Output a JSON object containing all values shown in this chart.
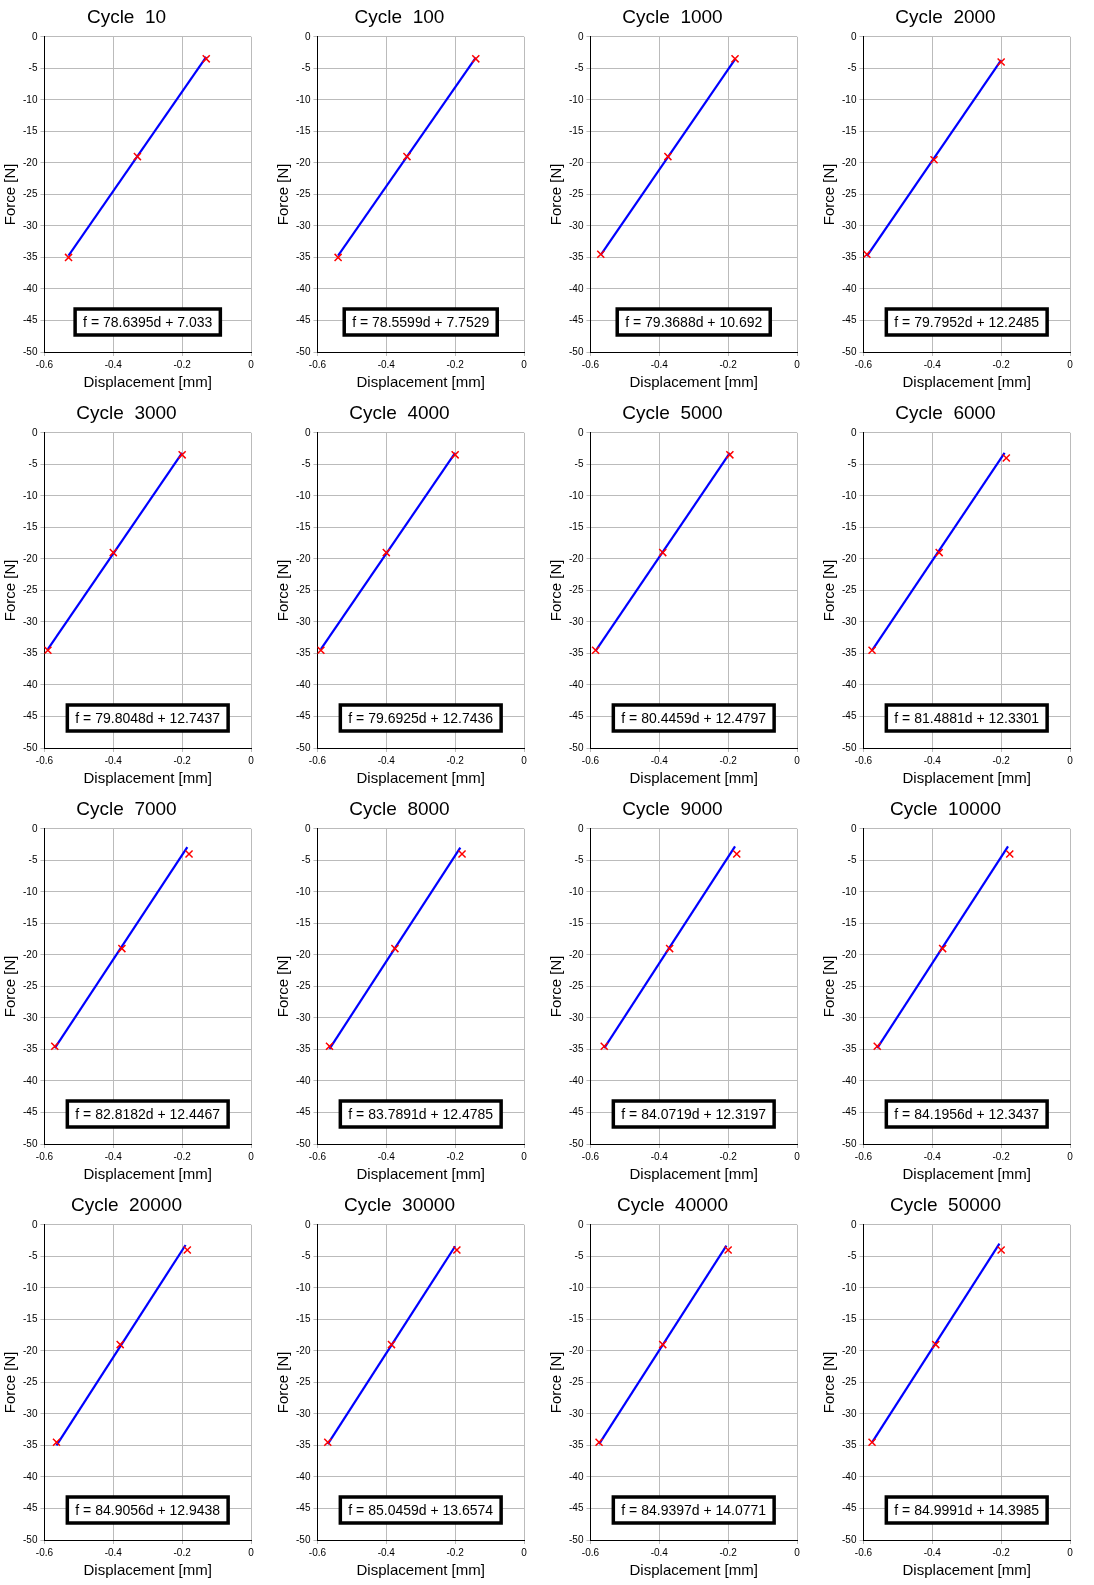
{
  "chart_data": [
    {
      "type": "scatter",
      "title": "Cycle  10",
      "xlabel": "Displacement [mm]",
      "ylabel": "Force [N]",
      "xlim": [
        -0.6,
        0
      ],
      "ylim": [
        -50,
        0
      ],
      "xticks": [
        -0.6,
        -0.4,
        -0.2,
        0
      ],
      "yticks": [
        -50,
        -45,
        -40,
        -35,
        -30,
        -25,
        -20,
        -15,
        -10,
        -5,
        0
      ],
      "grid": true,
      "legend": false,
      "annotations": [
        "f = 78.6395d + 7.033"
      ],
      "series": [
        {
          "type": "scatter",
          "color": "#ff0000",
          "marker": "cross",
          "x": [
            -0.53,
            -0.33,
            -0.13
          ],
          "values": [
            -35,
            -19,
            -3.5
          ]
        },
        {
          "type": "line",
          "color": "#0000ff",
          "marker": "none",
          "line_style": "solid",
          "x": [
            -0.53,
            -0.13
          ],
          "values": [
            -34.7,
            -3.2
          ]
        }
      ]
    },
    {
      "type": "scatter",
      "title": "Cycle  100",
      "xlabel": "Displacement [mm]",
      "ylabel": "Force [N]",
      "xlim": [
        -0.6,
        0
      ],
      "ylim": [
        -50,
        0
      ],
      "xticks": [
        -0.6,
        -0.4,
        -0.2,
        0
      ],
      "yticks": [
        -50,
        -45,
        -40,
        -35,
        -30,
        -25,
        -20,
        -15,
        -10,
        -5,
        0
      ],
      "grid": true,
      "legend": false,
      "annotations": [
        "f = 78.5599d + 7.7529"
      ],
      "series": [
        {
          "type": "scatter",
          "color": "#ff0000",
          "marker": "cross",
          "x": [
            -0.54,
            -0.34,
            -0.14
          ],
          "values": [
            -35,
            -19,
            -3.5
          ]
        },
        {
          "type": "line",
          "color": "#0000ff",
          "marker": "none",
          "line_style": "solid",
          "x": [
            -0.54,
            -0.14
          ],
          "values": [
            -34.7,
            -3.3
          ]
        }
      ]
    },
    {
      "type": "scatter",
      "title": "Cycle  1000",
      "xlabel": "Displacement [mm]",
      "ylabel": "Force [N]",
      "xlim": [
        -0.6,
        0
      ],
      "ylim": [
        -50,
        0
      ],
      "xticks": [
        -0.6,
        -0.4,
        -0.2,
        0
      ],
      "yticks": [
        -50,
        -45,
        -40,
        -35,
        -30,
        -25,
        -20,
        -15,
        -10,
        -5,
        0
      ],
      "grid": true,
      "legend": false,
      "annotations": [
        "f = 79.3688d + 10.692"
      ],
      "series": [
        {
          "type": "scatter",
          "color": "#ff0000",
          "marker": "cross",
          "x": [
            -0.57,
            -0.375,
            -0.18
          ],
          "values": [
            -34.5,
            -19,
            -3.5
          ]
        },
        {
          "type": "line",
          "color": "#0000ff",
          "marker": "none",
          "line_style": "solid",
          "x": [
            -0.57,
            -0.18
          ],
          "values": [
            -34.6,
            -3.6
          ]
        }
      ]
    },
    {
      "type": "scatter",
      "title": "Cycle  2000",
      "xlabel": "Displacement [mm]",
      "ylabel": "Force [N]",
      "xlim": [
        -0.6,
        0
      ],
      "ylim": [
        -50,
        0
      ],
      "xticks": [
        -0.6,
        -0.4,
        -0.2,
        0
      ],
      "yticks": [
        -50,
        -45,
        -40,
        -35,
        -30,
        -25,
        -20,
        -15,
        -10,
        -5,
        0
      ],
      "grid": true,
      "legend": false,
      "annotations": [
        "f = 79.7952d + 12.2485"
      ],
      "series": [
        {
          "type": "scatter",
          "color": "#ff0000",
          "marker": "cross",
          "x": [
            -0.59,
            -0.395,
            -0.2
          ],
          "values": [
            -34.5,
            -19.5,
            -4
          ]
        },
        {
          "type": "line",
          "color": "#0000ff",
          "marker": "none",
          "line_style": "solid",
          "x": [
            -0.59,
            -0.2
          ],
          "values": [
            -34.8,
            -3.7
          ]
        }
      ]
    },
    {
      "type": "scatter",
      "title": "Cycle  3000",
      "xlabel": "Displacement [mm]",
      "ylabel": "Force [N]",
      "xlim": [
        -0.6,
        0
      ],
      "ylim": [
        -50,
        0
      ],
      "xticks": [
        -0.6,
        -0.4,
        -0.2,
        0
      ],
      "yticks": [
        -50,
        -45,
        -40,
        -35,
        -30,
        -25,
        -20,
        -15,
        -10,
        -5,
        0
      ],
      "grid": true,
      "legend": false,
      "annotations": [
        "f = 79.8048d + 12.7437"
      ],
      "series": [
        {
          "type": "scatter",
          "color": "#ff0000",
          "marker": "cross",
          "x": [
            -0.59,
            -0.4,
            -0.2
          ],
          "values": [
            -34.5,
            -19,
            -3.5
          ]
        },
        {
          "type": "line",
          "color": "#0000ff",
          "marker": "none",
          "line_style": "solid",
          "x": [
            -0.59,
            -0.2
          ],
          "values": [
            -34.3,
            -3.2
          ]
        }
      ]
    },
    {
      "type": "scatter",
      "title": "Cycle  4000",
      "xlabel": "Displacement [mm]",
      "ylabel": "Force [N]",
      "xlim": [
        -0.6,
        0
      ],
      "ylim": [
        -50,
        0
      ],
      "xticks": [
        -0.6,
        -0.4,
        -0.2,
        0
      ],
      "yticks": [
        -50,
        -45,
        -40,
        -35,
        -30,
        -25,
        -20,
        -15,
        -10,
        -5,
        0
      ],
      "grid": true,
      "legend": false,
      "annotations": [
        "f = 79.6925d + 12.7436"
      ],
      "series": [
        {
          "type": "scatter",
          "color": "#ff0000",
          "marker": "cross",
          "x": [
            -0.59,
            -0.4,
            -0.2
          ],
          "values": [
            -34.5,
            -19,
            -3.5
          ]
        },
        {
          "type": "line",
          "color": "#0000ff",
          "marker": "none",
          "line_style": "solid",
          "x": [
            -0.59,
            -0.2
          ],
          "values": [
            -34.3,
            -3.2
          ]
        }
      ]
    },
    {
      "type": "scatter",
      "title": "Cycle  5000",
      "xlabel": "Displacement [mm]",
      "ylabel": "Force [N]",
      "xlim": [
        -0.6,
        0
      ],
      "ylim": [
        -50,
        0
      ],
      "xticks": [
        -0.6,
        -0.4,
        -0.2,
        0
      ],
      "yticks": [
        -50,
        -45,
        -40,
        -35,
        -30,
        -25,
        -20,
        -15,
        -10,
        -5,
        0
      ],
      "grid": true,
      "legend": false,
      "annotations": [
        "f = 80.4459d + 12.4797"
      ],
      "series": [
        {
          "type": "scatter",
          "color": "#ff0000",
          "marker": "cross",
          "x": [
            -0.585,
            -0.39,
            -0.195
          ],
          "values": [
            -34.5,
            -19,
            -3.5
          ]
        },
        {
          "type": "line",
          "color": "#0000ff",
          "marker": "none",
          "line_style": "solid",
          "x": [
            -0.585,
            -0.195
          ],
          "values": [
            -34.6,
            -3.2
          ]
        }
      ]
    },
    {
      "type": "scatter",
      "title": "Cycle  6000",
      "xlabel": "Displacement [mm]",
      "ylabel": "Force [N]",
      "xlim": [
        -0.6,
        0
      ],
      "ylim": [
        -50,
        0
      ],
      "xticks": [
        -0.6,
        -0.4,
        -0.2,
        0
      ],
      "yticks": [
        -50,
        -45,
        -40,
        -35,
        -30,
        -25,
        -20,
        -15,
        -10,
        -5,
        0
      ],
      "grid": true,
      "legend": false,
      "annotations": [
        "f = 81.4881d + 12.3301"
      ],
      "series": [
        {
          "type": "scatter",
          "color": "#ff0000",
          "marker": "cross",
          "x": [
            -0.575,
            -0.38,
            -0.185
          ],
          "values": [
            -34.5,
            -19,
            -4
          ]
        },
        {
          "type": "line",
          "color": "#0000ff",
          "marker": "none",
          "line_style": "solid",
          "x": [
            -0.575,
            -0.19
          ],
          "values": [
            -34.5,
            -3.2
          ]
        }
      ]
    },
    {
      "type": "scatter",
      "title": "Cycle  7000",
      "xlabel": "Displacement [mm]",
      "ylabel": "Force [N]",
      "xlim": [
        -0.6,
        0
      ],
      "ylim": [
        -50,
        0
      ],
      "xticks": [
        -0.6,
        -0.4,
        -0.2,
        0
      ],
      "yticks": [
        -50,
        -45,
        -40,
        -35,
        -30,
        -25,
        -20,
        -15,
        -10,
        -5,
        0
      ],
      "grid": true,
      "legend": false,
      "annotations": [
        "f = 82.8182d + 12.4467"
      ],
      "series": [
        {
          "type": "scatter",
          "color": "#ff0000",
          "marker": "cross",
          "x": [
            -0.57,
            -0.375,
            -0.18
          ],
          "values": [
            -34.5,
            -19,
            -4
          ]
        },
        {
          "type": "line",
          "color": "#0000ff",
          "marker": "none",
          "line_style": "solid",
          "x": [
            -0.57,
            -0.185
          ],
          "values": [
            -34.8,
            -2.9
          ]
        }
      ]
    },
    {
      "type": "scatter",
      "title": "Cycle  8000",
      "xlabel": "Displacement [mm]",
      "ylabel": "Force [N]",
      "xlim": [
        -0.6,
        0
      ],
      "ylim": [
        -50,
        0
      ],
      "xticks": [
        -0.6,
        -0.4,
        -0.2,
        0
      ],
      "yticks": [
        -50,
        -45,
        -40,
        -35,
        -30,
        -25,
        -20,
        -15,
        -10,
        -5,
        0
      ],
      "grid": true,
      "legend": false,
      "annotations": [
        "f = 83.7891d + 12.4785"
      ],
      "series": [
        {
          "type": "scatter",
          "color": "#ff0000",
          "marker": "cross",
          "x": [
            -0.565,
            -0.375,
            -0.18
          ],
          "values": [
            -34.5,
            -19,
            -4
          ]
        },
        {
          "type": "line",
          "color": "#0000ff",
          "marker": "none",
          "line_style": "solid",
          "x": [
            -0.565,
            -0.185
          ],
          "values": [
            -34.9,
            -3
          ]
        }
      ]
    },
    {
      "type": "scatter",
      "title": "Cycle  9000",
      "xlabel": "Displacement [mm]",
      "ylabel": "Force [N]",
      "xlim": [
        -0.6,
        0
      ],
      "ylim": [
        -50,
        0
      ],
      "xticks": [
        -0.6,
        -0.4,
        -0.2,
        0
      ],
      "yticks": [
        -50,
        -45,
        -40,
        -35,
        -30,
        -25,
        -20,
        -15,
        -10,
        -5,
        0
      ],
      "grid": true,
      "legend": false,
      "annotations": [
        "f = 84.0719d + 12.3197"
      ],
      "series": [
        {
          "type": "scatter",
          "color": "#ff0000",
          "marker": "cross",
          "x": [
            -0.56,
            -0.37,
            -0.175
          ],
          "values": [
            -34.5,
            -19,
            -4
          ]
        },
        {
          "type": "line",
          "color": "#0000ff",
          "marker": "none",
          "line_style": "solid",
          "x": [
            -0.56,
            -0.18
          ],
          "values": [
            -34.8,
            -2.8
          ]
        }
      ]
    },
    {
      "type": "scatter",
      "title": "Cycle  10000",
      "xlabel": "Displacement [mm]",
      "ylabel": "Force [N]",
      "xlim": [
        -0.6,
        0
      ],
      "ylim": [
        -50,
        0
      ],
      "xticks": [
        -0.6,
        -0.4,
        -0.2,
        0
      ],
      "yticks": [
        -50,
        -45,
        -40,
        -35,
        -30,
        -25,
        -20,
        -15,
        -10,
        -5,
        0
      ],
      "grid": true,
      "legend": false,
      "annotations": [
        "f = 84.1956d + 12.3437"
      ],
      "series": [
        {
          "type": "scatter",
          "color": "#ff0000",
          "marker": "cross",
          "x": [
            -0.56,
            -0.37,
            -0.175
          ],
          "values": [
            -34.5,
            -19,
            -4
          ]
        },
        {
          "type": "line",
          "color": "#0000ff",
          "marker": "none",
          "line_style": "solid",
          "x": [
            -0.56,
            -0.18
          ],
          "values": [
            -34.8,
            -2.8
          ]
        }
      ]
    },
    {
      "type": "scatter",
      "title": "Cycle  20000",
      "xlabel": "Displacement [mm]",
      "ylabel": "Force [N]",
      "xlim": [
        -0.6,
        0
      ],
      "ylim": [
        -50,
        0
      ],
      "xticks": [
        -0.6,
        -0.4,
        -0.2,
        0
      ],
      "yticks": [
        -50,
        -45,
        -40,
        -35,
        -30,
        -25,
        -20,
        -15,
        -10,
        -5,
        0
      ],
      "grid": true,
      "legend": false,
      "annotations": [
        "f = 84.9056d + 12.9438"
      ],
      "series": [
        {
          "type": "scatter",
          "color": "#ff0000",
          "marker": "cross",
          "x": [
            -0.565,
            -0.38,
            -0.185
          ],
          "values": [
            -34.5,
            -19,
            -4
          ]
        },
        {
          "type": "line",
          "color": "#0000ff",
          "marker": "none",
          "line_style": "solid",
          "x": [
            -0.565,
            -0.19
          ],
          "values": [
            -35,
            -3.2
          ]
        }
      ]
    },
    {
      "type": "scatter",
      "title": "Cycle  30000",
      "xlabel": "Displacement [mm]",
      "ylabel": "Force [N]",
      "xlim": [
        -0.6,
        0
      ],
      "ylim": [
        -50,
        0
      ],
      "xticks": [
        -0.6,
        -0.4,
        -0.2,
        0
      ],
      "yticks": [
        -50,
        -45,
        -40,
        -35,
        -30,
        -25,
        -20,
        -15,
        -10,
        -5,
        0
      ],
      "grid": true,
      "legend": false,
      "annotations": [
        "f = 85.0459d + 13.6574"
      ],
      "series": [
        {
          "type": "scatter",
          "color": "#ff0000",
          "marker": "cross",
          "x": [
            -0.57,
            -0.385,
            -0.195
          ],
          "values": [
            -34.5,
            -19,
            -4
          ]
        },
        {
          "type": "line",
          "color": "#0000ff",
          "marker": "none",
          "line_style": "solid",
          "x": [
            -0.57,
            -0.2
          ],
          "values": [
            -34.8,
            -3.4
          ]
        }
      ]
    },
    {
      "type": "scatter",
      "title": "Cycle  40000",
      "xlabel": "Displacement [mm]",
      "ylabel": "Force [N]",
      "xlim": [
        -0.6,
        0
      ],
      "ylim": [
        -50,
        0
      ],
      "xticks": [
        -0.6,
        -0.4,
        -0.2,
        0
      ],
      "yticks": [
        -50,
        -45,
        -40,
        -35,
        -30,
        -25,
        -20,
        -15,
        -10,
        -5,
        0
      ],
      "grid": true,
      "legend": false,
      "annotations": [
        "f = 84.9397d + 14.0771"
      ],
      "series": [
        {
          "type": "scatter",
          "color": "#ff0000",
          "marker": "cross",
          "x": [
            -0.575,
            -0.39,
            -0.2
          ],
          "values": [
            -34.5,
            -19,
            -4
          ]
        },
        {
          "type": "line",
          "color": "#0000ff",
          "marker": "none",
          "line_style": "solid",
          "x": [
            -0.575,
            -0.205
          ],
          "values": [
            -34.8,
            -3.3
          ]
        }
      ]
    },
    {
      "type": "scatter",
      "title": "Cycle  50000",
      "xlabel": "Displacement [mm]",
      "ylabel": "Force [N]",
      "xlim": [
        -0.6,
        0
      ],
      "ylim": [
        -50,
        0
      ],
      "xticks": [
        -0.6,
        -0.4,
        -0.2,
        0
      ],
      "yticks": [
        -50,
        -45,
        -40,
        -35,
        -30,
        -25,
        -20,
        -15,
        -10,
        -5,
        0
      ],
      "grid": true,
      "legend": false,
      "annotations": [
        "f = 84.9991d + 14.3985"
      ],
      "series": [
        {
          "type": "scatter",
          "color": "#ff0000",
          "marker": "cross",
          "x": [
            -0.575,
            -0.39,
            -0.2
          ],
          "values": [
            -34.5,
            -19,
            -4
          ]
        },
        {
          "type": "line",
          "color": "#0000ff",
          "marker": "none",
          "line_style": "solid",
          "x": [
            -0.575,
            -0.205
          ],
          "values": [
            -34.5,
            -3
          ]
        }
      ]
    }
  ]
}
